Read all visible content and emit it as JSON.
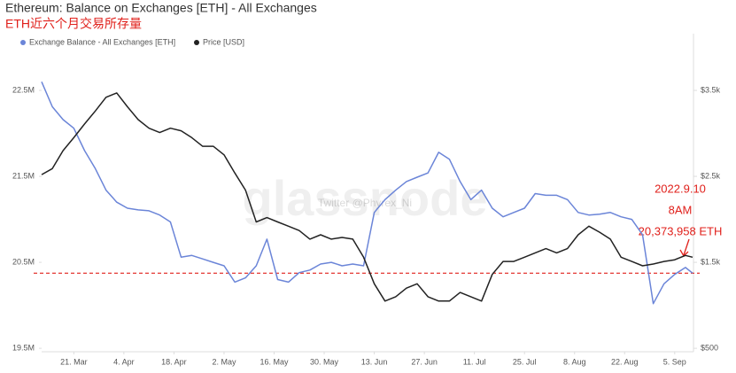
{
  "chart_data": {
    "type": "line",
    "title": "Ethereum: Balance on Exchanges [ETH] - All Exchanges",
    "subtitle": "ETH近六个月交易所存量",
    "watermark": [
      "glassnode",
      "Twitter @Phyrex_Ni"
    ],
    "x": [
      "12. Mar",
      "15. Mar",
      "18. Mar",
      "21. Mar",
      "24. Mar",
      "27. Mar",
      "30. Mar",
      "2. Apr",
      "5. Apr",
      "8. Apr",
      "11. Apr",
      "14. Apr",
      "17. Apr",
      "20. Apr",
      "23. Apr",
      "26. Apr",
      "29. Apr",
      "2. May",
      "5. May",
      "8. May",
      "11. May",
      "14. May",
      "17. May",
      "20. May",
      "23. May",
      "26. May",
      "29. May",
      "1. Jun",
      "4. Jun",
      "7. Jun",
      "10. Jun",
      "13. Jun",
      "16. Jun",
      "19. Jun",
      "22. Jun",
      "25. Jun",
      "28. Jun",
      "1. Jul",
      "4. Jul",
      "7. Jul",
      "10. Jul",
      "13. Jul",
      "16. Jul",
      "19. Jul",
      "22. Jul",
      "25. Jul",
      "28. Jul",
      "31. Jul",
      "3. Aug",
      "6. Aug",
      "9. Aug",
      "12. Aug",
      "15. Aug",
      "18. Aug",
      "21. Aug",
      "24. Aug",
      "27. Aug",
      "30. Aug",
      "2. Sep",
      "5. Sep",
      "8. Sep",
      "10. Sep"
    ],
    "xlim": [
      "12. Mar",
      "10. Sep"
    ],
    "xticks": [
      "21. Mar",
      "4. Apr",
      "18. Apr",
      "2. May",
      "16. May",
      "30. May",
      "13. Jun",
      "27. Jun",
      "11. Jul",
      "25. Jul",
      "8. Aug",
      "22. Aug",
      "5. Sep"
    ],
    "series": [
      {
        "name": "Exchange Balance - All Exchanges [ETH]",
        "color": "#6b85d8",
        "axis": "y",
        "values": [
          22600000,
          22310000,
          22160000,
          22060000,
          21800000,
          21590000,
          21340000,
          21200000,
          21130000,
          21110000,
          21100000,
          21050000,
          20970000,
          20560000,
          20580000,
          20540000,
          20500000,
          20460000,
          20270000,
          20320000,
          20460000,
          20770000,
          20300000,
          20270000,
          20380000,
          20410000,
          20480000,
          20500000,
          20460000,
          20480000,
          20460000,
          21080000,
          21230000,
          21340000,
          21440000,
          21490000,
          21540000,
          21780000,
          21700000,
          21440000,
          21230000,
          21340000,
          21130000,
          21030000,
          21080000,
          21130000,
          21300000,
          21280000,
          21280000,
          21230000,
          21080000,
          21050000,
          21060000,
          21080000,
          21030000,
          21000000,
          20820000,
          20020000,
          20250000,
          20360000,
          20440000,
          20373958
        ]
      },
      {
        "name": "Price [USD]",
        "color": "#222222",
        "axis": "y2",
        "values": [
          2520,
          2590,
          2800,
          2950,
          3110,
          3260,
          3420,
          3470,
          3310,
          3160,
          3060,
          3010,
          3060,
          3030,
          2950,
          2850,
          2850,
          2750,
          2540,
          2340,
          1970,
          2020,
          1970,
          1920,
          1870,
          1770,
          1820,
          1770,
          1790,
          1770,
          1560,
          1250,
          1050,
          1100,
          1200,
          1250,
          1100,
          1050,
          1050,
          1150,
          1100,
          1050,
          1360,
          1510,
          1510,
          1560,
          1610,
          1660,
          1610,
          1660,
          1820,
          1920,
          1850,
          1770,
          1560,
          1510,
          1460,
          1480,
          1510,
          1530,
          1580,
          1560
        ]
      }
    ],
    "ylim": [
      19460000,
      23160000
    ],
    "yticks": [
      {
        "value": 19500000,
        "label": "19.5M"
      },
      {
        "value": 20500000,
        "label": "20.5M"
      },
      {
        "value": 21500000,
        "label": "21.5M"
      },
      {
        "value": 22500000,
        "label": "22.5M"
      }
    ],
    "y2lim": [
      460,
      4160
    ],
    "y2ticks": [
      {
        "value": 500,
        "label": "$500"
      },
      {
        "value": 1500,
        "label": "$1.5k"
      },
      {
        "value": 2500,
        "label": "$2.5k"
      },
      {
        "value": 3500,
        "label": "$3.5k"
      }
    ],
    "reference_line": {
      "value": 20373958,
      "color": "#e0201b"
    },
    "annotations": [
      "2022.9.10",
      "8AM",
      "20,373,958 ETH"
    ],
    "grid": false,
    "legend": "top-left"
  }
}
